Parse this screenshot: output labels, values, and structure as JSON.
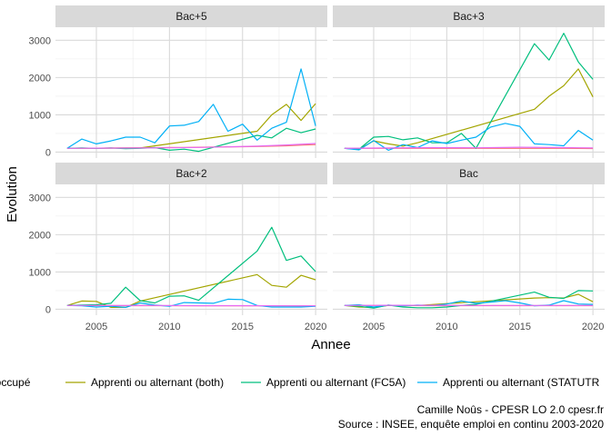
{
  "chart_data": {
    "type": "line",
    "facet_layout": "2x2 grid, shared axes",
    "xlabel": "Annee",
    "ylabel": "Evolution",
    "xlim": [
      2002.2,
      2020.8
    ],
    "ylim": [
      -160,
      3350
    ],
    "x_ticks": [
      2005,
      2010,
      2015,
      2020
    ],
    "y_ticks": [
      0,
      1000,
      2000,
      3000
    ],
    "grid": true,
    "legend_position": "bottom",
    "legend": [
      {
        "name": "Actif occupé",
        "color": "#F8766D"
      },
      {
        "name": "Apprenti ou alternant (both)",
        "color": "#A3A500"
      },
      {
        "name": "Apprenti ou alternant (FC5A)",
        "color": "#00BF7D"
      },
      {
        "name": "Apprenti ou alternant (STATUTR)",
        "color": "#00B0F6"
      },
      {
        "name": "",
        "color": "#E76BF3"
      }
    ],
    "legend_visible_text": [
      "Actif occupé",
      "Apprenti ou alternant (both)",
      "Apprenti ou alternant (FC5A)",
      "Apprenti ou alternant (STATUTR"
    ],
    "caption": [
      "Camille Noûs - CPESR LO 2.0 cpesr.fr",
      "Source : INSEE, enquête emploi en continu 2003-2020"
    ],
    "panels": [
      {
        "title": "Bac+5",
        "series": [
          {
            "name": "Actif occupé",
            "color": "#F8766D",
            "x": [
              2003,
              2004,
              2005,
              2006,
              2007,
              2008,
              2009,
              2010,
              2011,
              2012,
              2013,
              2014,
              2015,
              2016,
              2017,
              2018,
              2019,
              2020
            ],
            "y": [
              100,
              102,
              105,
              108,
              112,
              115,
              118,
              122,
              126,
              130,
              135,
              140,
              145,
              150,
              160,
              170,
              185,
              200
            ]
          },
          {
            "name": "Apprenti ou alternant (both)",
            "color": "#A3A500",
            "x": [
              2003,
              2008,
              2016,
              2017,
              2018,
              2019,
              2020
            ],
            "y": [
              100,
              110,
              560,
              1000,
              1280,
              850,
              1300
            ]
          },
          {
            "name": "Apprenti ou alternant (FC5A)",
            "color": "#00BF7D",
            "x": [
              2003,
              2004,
              2005,
              2006,
              2007,
              2008,
              2009,
              2010,
              2011,
              2012,
              2016,
              2017,
              2018,
              2019,
              2020
            ],
            "y": [
              100,
              110,
              100,
              110,
              90,
              100,
              120,
              50,
              80,
              20,
              450,
              380,
              640,
              520,
              620
            ]
          },
          {
            "name": "Apprenti ou alternant (STATUTR)",
            "color": "#00B0F6",
            "x": [
              2003,
              2004,
              2005,
              2006,
              2007,
              2008,
              2009,
              2010,
              2011,
              2012,
              2013,
              2014,
              2015,
              2016,
              2017,
              2018,
              2019,
              2020
            ],
            "y": [
              100,
              350,
              220,
              300,
              400,
              400,
              250,
              700,
              720,
              820,
              1280,
              560,
              750,
              320,
              640,
              800,
              2230,
              700
            ]
          },
          {
            "name": "",
            "color": "#E76BF3",
            "x": [
              2003,
              2005,
              2008,
              2010,
              2012,
              2014,
              2016,
              2018,
              2020
            ],
            "y": [
              100,
              105,
              110,
              115,
              125,
              140,
              160,
              190,
              230
            ]
          }
        ]
      },
      {
        "title": "Bac+3",
        "series": [
          {
            "name": "Actif occupé",
            "color": "#F8766D",
            "x": [
              2003,
              2006,
              2009,
              2012,
              2015,
              2018,
              2020
            ],
            "y": [
              100,
              100,
              100,
              100,
              100,
              100,
              95
            ]
          },
          {
            "name": "Apprenti ou alternant (both)",
            "color": "#A3A500",
            "x": [
              2003,
              2004,
              2005,
              2006,
              2007,
              2008,
              2016,
              2017,
              2018,
              2019,
              2020
            ],
            "y": [
              100,
              80,
              300,
              220,
              160,
              250,
              1150,
              1500,
              1780,
              2230,
              1480
            ]
          },
          {
            "name": "Apprenti ou alternant (FC5A)",
            "color": "#00BF7D",
            "x": [
              2003,
              2004,
              2005,
              2006,
              2007,
              2008,
              2009,
              2010,
              2011,
              2012,
              2016,
              2017,
              2018,
              2019,
              2020
            ],
            "y": [
              100,
              80,
              400,
              420,
              330,
              380,
              250,
              250,
              500,
              100,
              2910,
              2470,
              3190,
              2420,
              1950
            ]
          },
          {
            "name": "Apprenti ou alternant (STATUTR)",
            "color": "#00B0F6",
            "x": [
              2003,
              2004,
              2005,
              2006,
              2007,
              2008,
              2009,
              2010,
              2011,
              2012,
              2013,
              2014,
              2015,
              2016,
              2017,
              2018,
              2019,
              2020
            ],
            "y": [
              100,
              60,
              310,
              50,
              200,
              120,
              300,
              230,
              320,
              400,
              670,
              770,
              690,
              220,
              200,
              170,
              580,
              320
            ]
          },
          {
            "name": "",
            "color": "#E76BF3",
            "x": [
              2003,
              2006,
              2009,
              2012,
              2015,
              2018,
              2020
            ],
            "y": [
              100,
              110,
              120,
              115,
              130,
              120,
              110
            ]
          }
        ]
      },
      {
        "title": "Bac+2",
        "series": [
          {
            "name": "Actif occupé",
            "color": "#F8766D",
            "x": [
              2003,
              2006,
              2009,
              2012,
              2015,
              2018,
              2020
            ],
            "y": [
              100,
              95,
              95,
              90,
              90,
              90,
              85
            ]
          },
          {
            "name": "Apprenti ou alternant (both)",
            "color": "#A3A500",
            "x": [
              2003,
              2004,
              2005,
              2006,
              2007,
              2008,
              2016,
              2017,
              2018,
              2019,
              2020
            ],
            "y": [
              100,
              220,
              210,
              50,
              50,
              220,
              930,
              640,
              590,
              910,
              790
            ]
          },
          {
            "name": "Apprenti ou alternant (FC5A)",
            "color": "#00BF7D",
            "x": [
              2003,
              2004,
              2005,
              2006,
              2007,
              2008,
              2009,
              2010,
              2011,
              2012,
              2016,
              2017,
              2018,
              2019,
              2020
            ],
            "y": [
              100,
              110,
              120,
              160,
              590,
              230,
              170,
              350,
              360,
              240,
              1560,
              2200,
              1310,
              1430,
              1010
            ]
          },
          {
            "name": "Apprenti ou alternant (STATUTR)",
            "color": "#00B0F6",
            "x": [
              2003,
              2004,
              2005,
              2006,
              2007,
              2008,
              2009,
              2010,
              2011,
              2012,
              2013,
              2014,
              2015,
              2016,
              2017,
              2018,
              2019,
              2020
            ],
            "y": [
              100,
              90,
              60,
              80,
              50,
              170,
              110,
              80,
              180,
              170,
              160,
              270,
              260,
              100,
              60,
              60,
              60,
              80
            ]
          },
          {
            "name": "",
            "color": "#E76BF3",
            "x": [
              2003,
              2006,
              2009,
              2012,
              2015,
              2018,
              2020
            ],
            "y": [
              100,
              100,
              100,
              95,
              95,
              90,
              90
            ]
          }
        ]
      },
      {
        "title": "Bac",
        "series": [
          {
            "name": "Actif occupé",
            "color": "#F8766D",
            "x": [
              2003,
              2006,
              2009,
              2012,
              2015,
              2018,
              2020
            ],
            "y": [
              100,
              100,
              95,
              95,
              95,
              95,
              95
            ]
          },
          {
            "name": "Apprenti ou alternant (both)",
            "color": "#A3A500",
            "x": [
              2003,
              2004,
              2005,
              2006,
              2007,
              2008,
              2016,
              2017,
              2018,
              2019,
              2020
            ],
            "y": [
              100,
              60,
              50,
              100,
              90,
              100,
              300,
              310,
              300,
              400,
              200
            ]
          },
          {
            "name": "Apprenti ou alternant (FC5A)",
            "color": "#00BF7D",
            "x": [
              2003,
              2004,
              2005,
              2006,
              2007,
              2008,
              2009,
              2010,
              2011,
              2012,
              2016,
              2017,
              2018,
              2019,
              2020
            ],
            "y": [
              100,
              80,
              30,
              110,
              60,
              40,
              40,
              60,
              100,
              130,
              460,
              320,
              290,
              500,
              490
            ]
          },
          {
            "name": "Apprenti ou alternant (STATUTR)",
            "color": "#00B0F6",
            "x": [
              2003,
              2004,
              2005,
              2006,
              2007,
              2008,
              2009,
              2010,
              2011,
              2012,
              2013,
              2014,
              2015,
              2016,
              2017,
              2018,
              2019,
              2020
            ],
            "y": [
              100,
              120,
              60,
              110,
              90,
              110,
              100,
              140,
              220,
              160,
              190,
              230,
              170,
              90,
              110,
              230,
              140,
              130
            ]
          },
          {
            "name": "",
            "color": "#E76BF3",
            "x": [
              2003,
              2006,
              2009,
              2012,
              2015,
              2018,
              2020
            ],
            "y": [
              100,
              105,
              105,
              100,
              100,
              100,
              100
            ]
          }
        ]
      }
    ]
  }
}
